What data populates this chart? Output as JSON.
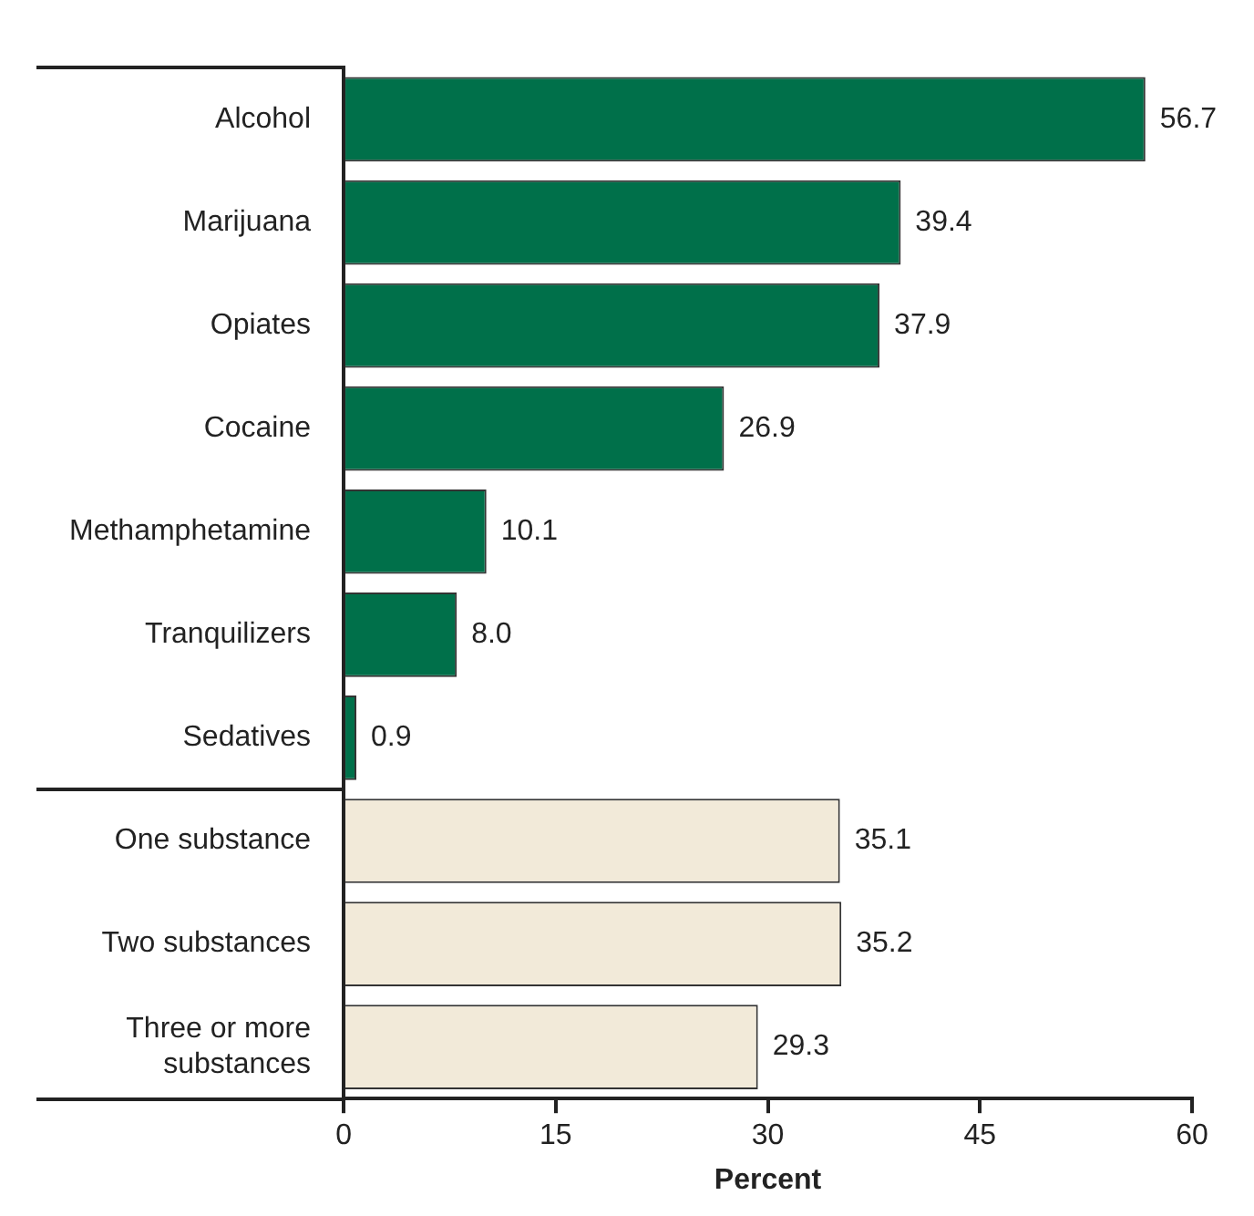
{
  "chart_data": {
    "type": "bar",
    "orientation": "horizontal",
    "xlabel": "Percent",
    "categories": [
      "Alcohol",
      "Marijuana",
      "Opiates",
      "Cocaine",
      "Methamphetamine",
      "Tranquilizers",
      "Sedatives",
      "One substance",
      "Two substances",
      "Three or more substances"
    ],
    "values": [
      56.7,
      39.4,
      37.9,
      26.9,
      10.1,
      8.0,
      0.9,
      35.1,
      35.2,
      29.3
    ],
    "value_labels": [
      "56.7",
      "39.4",
      "37.9",
      "26.9",
      "10.1",
      "8.0",
      "0.9",
      "35.1",
      "35.2",
      "29.3"
    ],
    "colors": [
      "#00704a",
      "#00704a",
      "#00704a",
      "#00704a",
      "#00704a",
      "#00704a",
      "#00704a",
      "#f2ead9",
      "#f2ead9",
      "#f2ead9"
    ],
    "xlim": [
      0,
      60
    ],
    "xticks": [
      0,
      15,
      30,
      45,
      60
    ],
    "grid": false,
    "legend": false
  }
}
